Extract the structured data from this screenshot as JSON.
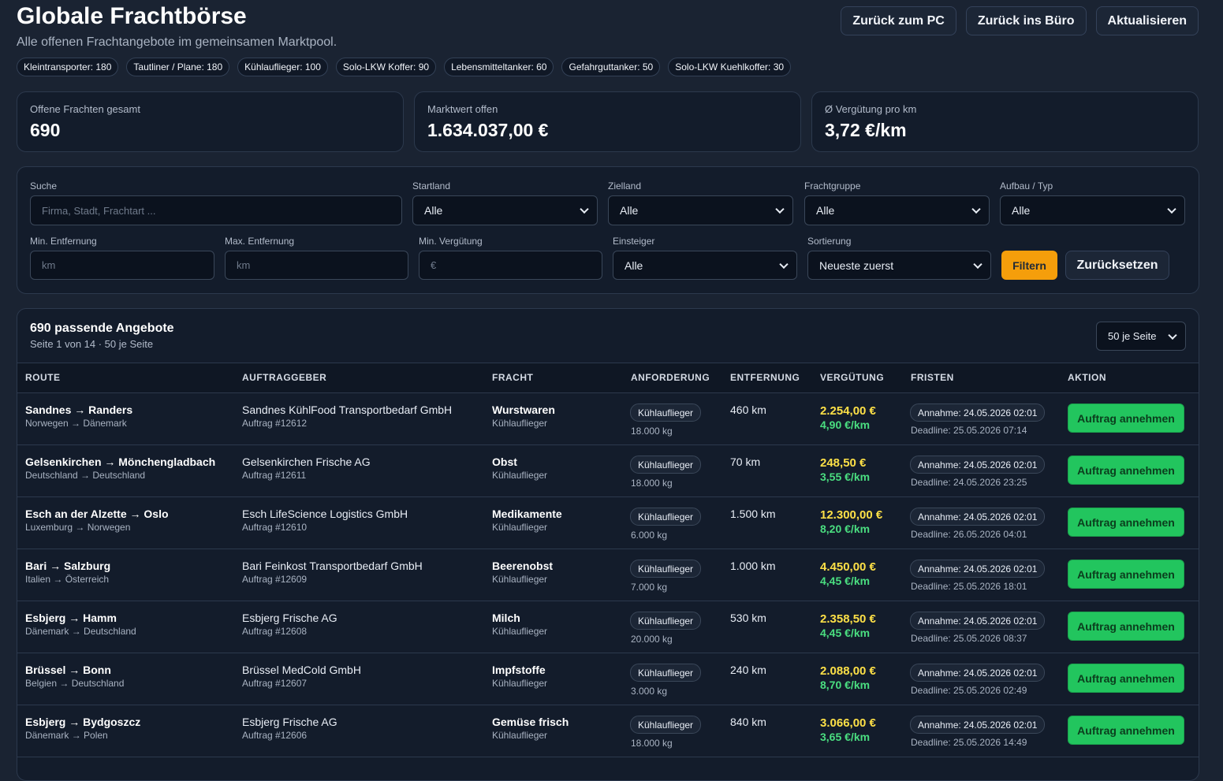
{
  "header": {
    "title": "Globale Frachtbörse",
    "subtitle": "Alle offenen Frachtangebote im gemeinsamen Marktpool.",
    "buttons": [
      "Zurück zum PC",
      "Zurück ins Büro",
      "Aktualisieren"
    ]
  },
  "chips": [
    "Kleintransporter: 180",
    "Tautliner / Plane: 180",
    "Kühlauflieger: 100",
    "Solo-LKW Koffer: 90",
    "Lebensmitteltanker: 60",
    "Gefahrguttanker: 50",
    "Solo-LKW Kuehlkoffer: 30"
  ],
  "stats": [
    {
      "label": "Offene Frachten gesamt",
      "value": "690"
    },
    {
      "label": "Marktwert offen",
      "value": "1.634.037,00 €"
    },
    {
      "label": "Ø Vergütung pro km",
      "value": "3,72 €/km"
    }
  ],
  "filters": {
    "row1": [
      {
        "label": "Suche",
        "placeholder": "Firma, Stadt, Frachtart ..."
      },
      {
        "label": "Startland",
        "value": "Alle"
      },
      {
        "label": "Zielland",
        "value": "Alle"
      },
      {
        "label": "Frachtgruppe",
        "value": "Alle"
      },
      {
        "label": "Aufbau / Typ",
        "value": "Alle"
      }
    ],
    "row2": [
      {
        "label": "Min. Entfernung",
        "placeholder": "km"
      },
      {
        "label": "Max. Entfernung",
        "placeholder": "km"
      },
      {
        "label": "Min. Vergütung",
        "placeholder": "€"
      },
      {
        "label": "Einsteiger",
        "value": "Alle"
      },
      {
        "label": "Sortierung",
        "value": "Neueste zuerst"
      }
    ],
    "apply": "Filtern",
    "reset": "Zurücksetzen"
  },
  "results": {
    "title": "690 passende Angebote",
    "subtitle": "Seite 1 von 14 · 50 je Seite",
    "per_page": "50 je Seite",
    "columns": [
      "ROUTE",
      "AUFTRAGGEBER",
      "FRACHT",
      "ANFORDERUNG",
      "ENTFERNUNG",
      "VERGÜTUNG",
      "FRISTEN",
      "AKTION"
    ],
    "rows": [
      {
        "route": "Sandnes → Randers",
        "countries": "Norwegen → Dänemark",
        "client": "Sandnes KühlFood Transportbedarf GmbH",
        "order": "Auftrag #12612",
        "cargo": "Wurstwaren",
        "cargo_type": "Kühlauflieger",
        "requirement": "Kühlauflieger",
        "weight": "18.000 kg",
        "distance": "460 km",
        "price": "2.254,00 €",
        "per_km": "4,90 €/km",
        "accept": "Annahme: 24.05.2026 02:01",
        "deadline": "Deadline: 25.05.2026 07:14",
        "action": "Auftrag annehmen"
      },
      {
        "route": "Gelsenkirchen → Mönchengladbach",
        "countries": "Deutschland → Deutschland",
        "client": "Gelsenkirchen Frische AG",
        "order": "Auftrag #12611",
        "cargo": "Obst",
        "cargo_type": "Kühlauflieger",
        "requirement": "Kühlauflieger",
        "weight": "18.000 kg",
        "distance": "70 km",
        "price": "248,50 €",
        "per_km": "3,55 €/km",
        "accept": "Annahme: 24.05.2026 02:01",
        "deadline": "Deadline: 24.05.2026 23:25",
        "action": "Auftrag annehmen"
      },
      {
        "route": "Esch an der Alzette → Oslo",
        "countries": "Luxemburg → Norwegen",
        "client": "Esch LifeScience Logistics GmbH",
        "order": "Auftrag #12610",
        "cargo": "Medikamente",
        "cargo_type": "Kühlauflieger",
        "requirement": "Kühlauflieger",
        "weight": "6.000 kg",
        "distance": "1.500 km",
        "price": "12.300,00 €",
        "per_km": "8,20 €/km",
        "accept": "Annahme: 24.05.2026 02:01",
        "deadline": "Deadline: 26.05.2026 04:01",
        "action": "Auftrag annehmen"
      },
      {
        "route": "Bari → Salzburg",
        "countries": "Italien → Österreich",
        "client": "Bari Feinkost Transportbedarf GmbH",
        "order": "Auftrag #12609",
        "cargo": "Beerenobst",
        "cargo_type": "Kühlauflieger",
        "requirement": "Kühlauflieger",
        "weight": "7.000 kg",
        "distance": "1.000 km",
        "price": "4.450,00 €",
        "per_km": "4,45 €/km",
        "accept": "Annahme: 24.05.2026 02:01",
        "deadline": "Deadline: 25.05.2026 18:01",
        "action": "Auftrag annehmen"
      },
      {
        "route": "Esbjerg → Hamm",
        "countries": "Dänemark → Deutschland",
        "client": "Esbjerg Frische AG",
        "order": "Auftrag #12608",
        "cargo": "Milch",
        "cargo_type": "Kühlauflieger",
        "requirement": "Kühlauflieger",
        "weight": "20.000 kg",
        "distance": "530 km",
        "price": "2.358,50 €",
        "per_km": "4,45 €/km",
        "accept": "Annahme: 24.05.2026 02:01",
        "deadline": "Deadline: 25.05.2026 08:37",
        "action": "Auftrag annehmen"
      },
      {
        "route": "Brüssel → Bonn",
        "countries": "Belgien → Deutschland",
        "client": "Brüssel MedCold GmbH",
        "order": "Auftrag #12607",
        "cargo": "Impfstoffe",
        "cargo_type": "Kühlauflieger",
        "requirement": "Kühlauflieger",
        "weight": "3.000 kg",
        "distance": "240 km",
        "price": "2.088,00 €",
        "per_km": "8,70 €/km",
        "accept": "Annahme: 24.05.2026 02:01",
        "deadline": "Deadline: 25.05.2026 02:49",
        "action": "Auftrag annehmen"
      },
      {
        "route": "Esbjerg → Bydgoszcz",
        "countries": "Dänemark → Polen",
        "client": "Esbjerg Frische AG",
        "order": "Auftrag #12606",
        "cargo": "Gemüse frisch",
        "cargo_type": "Kühlauflieger",
        "requirement": "Kühlauflieger",
        "weight": "18.000 kg",
        "distance": "840 km",
        "price": "3.066,00 €",
        "per_km": "3,65 €/km",
        "accept": "Annahme: 24.05.2026 02:01",
        "deadline": "Deadline: 25.05.2026 14:49",
        "action": "Auftrag annehmen"
      }
    ]
  }
}
